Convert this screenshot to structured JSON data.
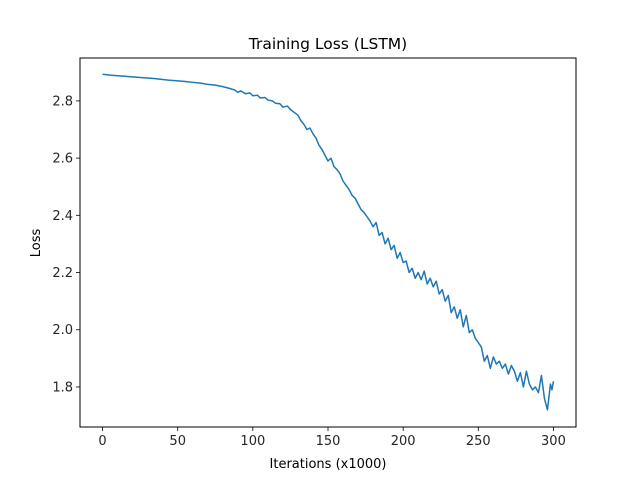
{
  "chart_data": {
    "type": "line",
    "title": "Training Loss (LSTM)",
    "xlabel": "Iterations (x1000)",
    "ylabel": "Loss",
    "xlim": [
      -15,
      315
    ],
    "ylim": [
      1.66,
      2.95
    ],
    "xticks": [
      0,
      50,
      100,
      150,
      200,
      250,
      300
    ],
    "yticks": [
      1.8,
      2.0,
      2.2,
      2.4,
      2.6,
      2.8
    ],
    "ytick_labels": [
      "1.8",
      "2.0",
      "2.2",
      "2.4",
      "2.6",
      "2.8"
    ],
    "grid": false,
    "line_color": "#1f77b4",
    "series": [
      {
        "points": [
          [
            0,
            2.893
          ],
          [
            5,
            2.89
          ],
          [
            10,
            2.888
          ],
          [
            15,
            2.886
          ],
          [
            20,
            2.884
          ],
          [
            25,
            2.882
          ],
          [
            30,
            2.88
          ],
          [
            35,
            2.878
          ],
          [
            40,
            2.875
          ],
          [
            45,
            2.872
          ],
          [
            50,
            2.87
          ],
          [
            55,
            2.868
          ],
          [
            60,
            2.865
          ],
          [
            65,
            2.862
          ],
          [
            70,
            2.858
          ],
          [
            75,
            2.855
          ],
          [
            80,
            2.85
          ],
          [
            85,
            2.843
          ],
          [
            88,
            2.838
          ],
          [
            90,
            2.83
          ],
          [
            92,
            2.835
          ],
          [
            95,
            2.825
          ],
          [
            98,
            2.828
          ],
          [
            100,
            2.818
          ],
          [
            103,
            2.82
          ],
          [
            105,
            2.81
          ],
          [
            108,
            2.812
          ],
          [
            110,
            2.803
          ],
          [
            113,
            2.8
          ],
          [
            115,
            2.792
          ],
          [
            118,
            2.79
          ],
          [
            120,
            2.778
          ],
          [
            123,
            2.782
          ],
          [
            125,
            2.77
          ],
          [
            128,
            2.758
          ],
          [
            130,
            2.75
          ],
          [
            132,
            2.73
          ],
          [
            134,
            2.718
          ],
          [
            136,
            2.7
          ],
          [
            138,
            2.705
          ],
          [
            140,
            2.685
          ],
          [
            142,
            2.67
          ],
          [
            144,
            2.645
          ],
          [
            146,
            2.63
          ],
          [
            148,
            2.61
          ],
          [
            150,
            2.59
          ],
          [
            152,
            2.6
          ],
          [
            154,
            2.57
          ],
          [
            156,
            2.56
          ],
          [
            158,
            2.545
          ],
          [
            160,
            2.52
          ],
          [
            162,
            2.505
          ],
          [
            164,
            2.49
          ],
          [
            166,
            2.47
          ],
          [
            168,
            2.46
          ],
          [
            170,
            2.44
          ],
          [
            172,
            2.42
          ],
          [
            174,
            2.41
          ],
          [
            176,
            2.395
          ],
          [
            178,
            2.38
          ],
          [
            180,
            2.36
          ],
          [
            182,
            2.375
          ],
          [
            184,
            2.33
          ],
          [
            186,
            2.34
          ],
          [
            188,
            2.3
          ],
          [
            190,
            2.32
          ],
          [
            192,
            2.28
          ],
          [
            194,
            2.295
          ],
          [
            196,
            2.25
          ],
          [
            198,
            2.27
          ],
          [
            200,
            2.235
          ],
          [
            202,
            2.24
          ],
          [
            204,
            2.2
          ],
          [
            206,
            2.215
          ],
          [
            208,
            2.18
          ],
          [
            210,
            2.2
          ],
          [
            212,
            2.175
          ],
          [
            214,
            2.205
          ],
          [
            216,
            2.16
          ],
          [
            218,
            2.18
          ],
          [
            220,
            2.15
          ],
          [
            222,
            2.17
          ],
          [
            224,
            2.125
          ],
          [
            226,
            2.14
          ],
          [
            228,
            2.1
          ],
          [
            230,
            2.12
          ],
          [
            232,
            2.06
          ],
          [
            234,
            2.08
          ],
          [
            236,
            2.04
          ],
          [
            238,
            2.07
          ],
          [
            240,
            2.01
          ],
          [
            242,
            2.05
          ],
          [
            244,
            1.99
          ],
          [
            246,
            2.0
          ],
          [
            248,
            1.97
          ],
          [
            250,
            1.955
          ],
          [
            252,
            1.94
          ],
          [
            254,
            1.89
          ],
          [
            256,
            1.91
          ],
          [
            258,
            1.865
          ],
          [
            260,
            1.905
          ],
          [
            262,
            1.88
          ],
          [
            264,
            1.89
          ],
          [
            266,
            1.865
          ],
          [
            268,
            1.88
          ],
          [
            270,
            1.845
          ],
          [
            272,
            1.875
          ],
          [
            274,
            1.855
          ],
          [
            276,
            1.82
          ],
          [
            278,
            1.85
          ],
          [
            280,
            1.8
          ],
          [
            282,
            1.855
          ],
          [
            284,
            1.81
          ],
          [
            286,
            1.79
          ],
          [
            288,
            1.8
          ],
          [
            290,
            1.78
          ],
          [
            292,
            1.84
          ],
          [
            294,
            1.76
          ],
          [
            296,
            1.72
          ],
          [
            298,
            1.81
          ],
          [
            299,
            1.79
          ],
          [
            300,
            1.82
          ]
        ]
      }
    ]
  }
}
